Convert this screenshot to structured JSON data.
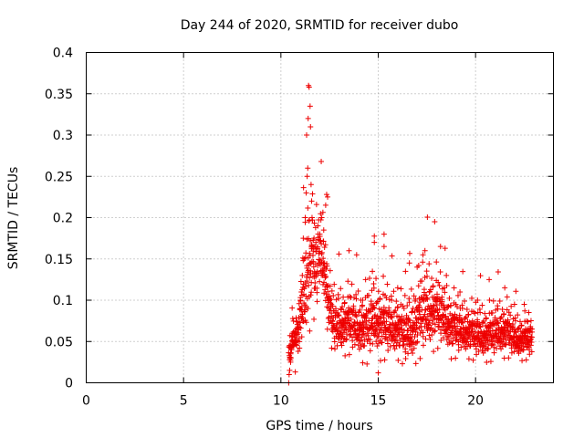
{
  "chart_data": {
    "type": "scatter",
    "title": "Day 244 of 2020, SRMTID for receiver dubo",
    "xlabel": "GPS time / hours",
    "ylabel": "SRMTID / TECUs",
    "xlim": [
      0,
      24
    ],
    "ylim": [
      0,
      0.4
    ],
    "x_ticks": [
      0,
      5,
      10,
      15,
      20
    ],
    "x_tick_labels": [
      "0",
      "5",
      "10",
      "15",
      "20"
    ],
    "y_ticks": [
      0,
      0.05,
      0.1,
      0.15,
      0.2,
      0.25,
      0.3,
      0.35,
      0.4
    ],
    "y_tick_labels": [
      "0",
      "0.05",
      "0.1",
      "0.15",
      "0.2",
      "0.25",
      "0.3",
      "0.35",
      "0.4"
    ],
    "grid": true,
    "marker": "+",
    "series": [
      {
        "name": "SRMTID",
        "color": "#ee0000",
        "envelope_x": [
          10.4,
          10.6,
          10.8,
          11.0,
          11.2,
          11.4,
          11.6,
          11.8,
          12.0,
          12.2,
          12.5,
          12.8,
          13.2,
          13.6,
          14.0,
          14.4,
          14.8,
          15.2,
          15.6,
          16.0,
          16.4,
          16.8,
          17.2,
          17.6,
          18.0,
          18.4,
          18.8,
          19.2,
          19.6,
          20.0,
          20.4,
          20.8,
          21.2,
          21.6,
          22.0,
          22.4,
          22.9
        ],
        "envelope_center": [
          0.03,
          0.045,
          0.06,
          0.08,
          0.11,
          0.15,
          0.15,
          0.14,
          0.16,
          0.15,
          0.09,
          0.07,
          0.075,
          0.075,
          0.07,
          0.07,
          0.08,
          0.075,
          0.07,
          0.07,
          0.06,
          0.07,
          0.085,
          0.09,
          0.09,
          0.08,
          0.07,
          0.065,
          0.065,
          0.06,
          0.06,
          0.06,
          0.065,
          0.065,
          0.055,
          0.055,
          0.055
        ],
        "envelope_spread": [
          0.012,
          0.018,
          0.025,
          0.035,
          0.05,
          0.07,
          0.05,
          0.05,
          0.04,
          0.04,
          0.03,
          0.03,
          0.03,
          0.03,
          0.03,
          0.035,
          0.035,
          0.035,
          0.03,
          0.03,
          0.03,
          0.035,
          0.04,
          0.04,
          0.035,
          0.03,
          0.03,
          0.025,
          0.025,
          0.025,
          0.025,
          0.025,
          0.025,
          0.025,
          0.02,
          0.02,
          0.02
        ],
        "n_points": 1500,
        "points": [
          [
            10.4,
            0.0
          ],
          [
            10.45,
            0.015
          ],
          [
            10.5,
            0.025
          ],
          [
            10.55,
            0.04
          ],
          [
            10.6,
            0.06
          ],
          [
            10.8,
            0.065
          ],
          [
            11.0,
            0.09
          ],
          [
            11.05,
            0.11
          ],
          [
            11.1,
            0.13
          ],
          [
            11.15,
            0.175
          ],
          [
            11.2,
            0.15
          ],
          [
            11.25,
            0.2
          ],
          [
            11.3,
            0.23
          ],
          [
            11.32,
            0.3
          ],
          [
            11.35,
            0.25
          ],
          [
            11.38,
            0.26
          ],
          [
            11.4,
            0.32
          ],
          [
            11.42,
            0.36
          ],
          [
            11.45,
            0.358
          ],
          [
            11.5,
            0.335
          ],
          [
            11.52,
            0.31
          ],
          [
            11.55,
            0.24
          ],
          [
            11.58,
            0.22
          ],
          [
            11.6,
            0.2
          ],
          [
            11.7,
            0.175
          ],
          [
            11.8,
            0.17
          ],
          [
            11.9,
            0.19
          ],
          [
            12.0,
            0.18
          ],
          [
            12.1,
            0.2
          ],
          [
            12.2,
            0.185
          ],
          [
            12.3,
            0.215
          ],
          [
            12.35,
            0.228
          ],
          [
            12.4,
            0.225
          ],
          [
            12.5,
            0.105
          ],
          [
            13.5,
            0.16
          ],
          [
            14.2,
            0.1
          ],
          [
            14.7,
            0.135
          ],
          [
            14.8,
            0.17
          ],
          [
            15.0,
            0.012
          ],
          [
            15.3,
            0.18
          ],
          [
            15.3,
            0.165
          ],
          [
            16.0,
            0.115
          ],
          [
            16.4,
            0.135
          ],
          [
            16.6,
            0.145
          ],
          [
            17.0,
            0.14
          ],
          [
            17.3,
            0.155
          ],
          [
            17.4,
            0.16
          ],
          [
            17.9,
            0.195
          ],
          [
            18.2,
            0.165
          ],
          [
            18.5,
            0.13
          ],
          [
            19.2,
            0.11
          ],
          [
            20.1,
            0.1
          ],
          [
            20.7,
            0.125
          ],
          [
            21.5,
            0.115
          ],
          [
            22.0,
            0.095
          ],
          [
            22.5,
            0.095
          ],
          [
            22.9,
            0.065
          ]
        ]
      }
    ]
  }
}
